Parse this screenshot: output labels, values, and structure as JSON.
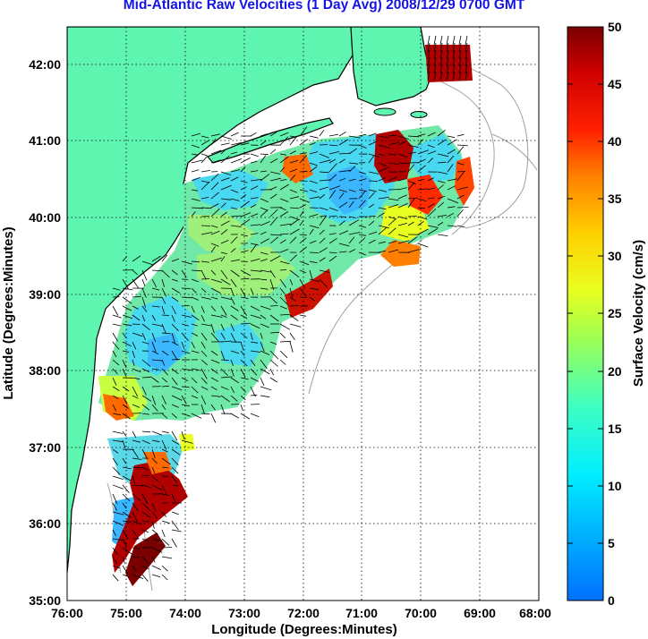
{
  "title": "Mid-Atlantic Raw Velocities (1 Day Avg) 2008/12/29 0700 GMT",
  "map": {
    "x_label": "Longitude (Degrees:Minutes)",
    "y_label": "Latitude (Degrees:Minutes)",
    "x_ticks": [
      "76:00",
      "75:00",
      "74:00",
      "73:00",
      "72:00",
      "71:00",
      "70:00",
      "69:00",
      "68:00"
    ],
    "y_ticks": [
      "42:00",
      "41:00",
      "40:00",
      "39:00",
      "38:00",
      "37:00",
      "36:00",
      "35:00"
    ],
    "lon_range": [
      -76,
      -68
    ],
    "lat_range": [
      35,
      42.5
    ],
    "grid": "dotted",
    "land_color": "#5ef5b0",
    "coast_color": "#000000",
    "bathymetry_color": "#a0a0a0"
  },
  "colorbar": {
    "label": "Surface Velocity (cm/s)",
    "ticks": [
      "50",
      "45",
      "40",
      "35",
      "30",
      "25",
      "20",
      "15",
      "10",
      "5",
      "0"
    ],
    "range": [
      0,
      50
    ],
    "colormap": "jet"
  }
}
